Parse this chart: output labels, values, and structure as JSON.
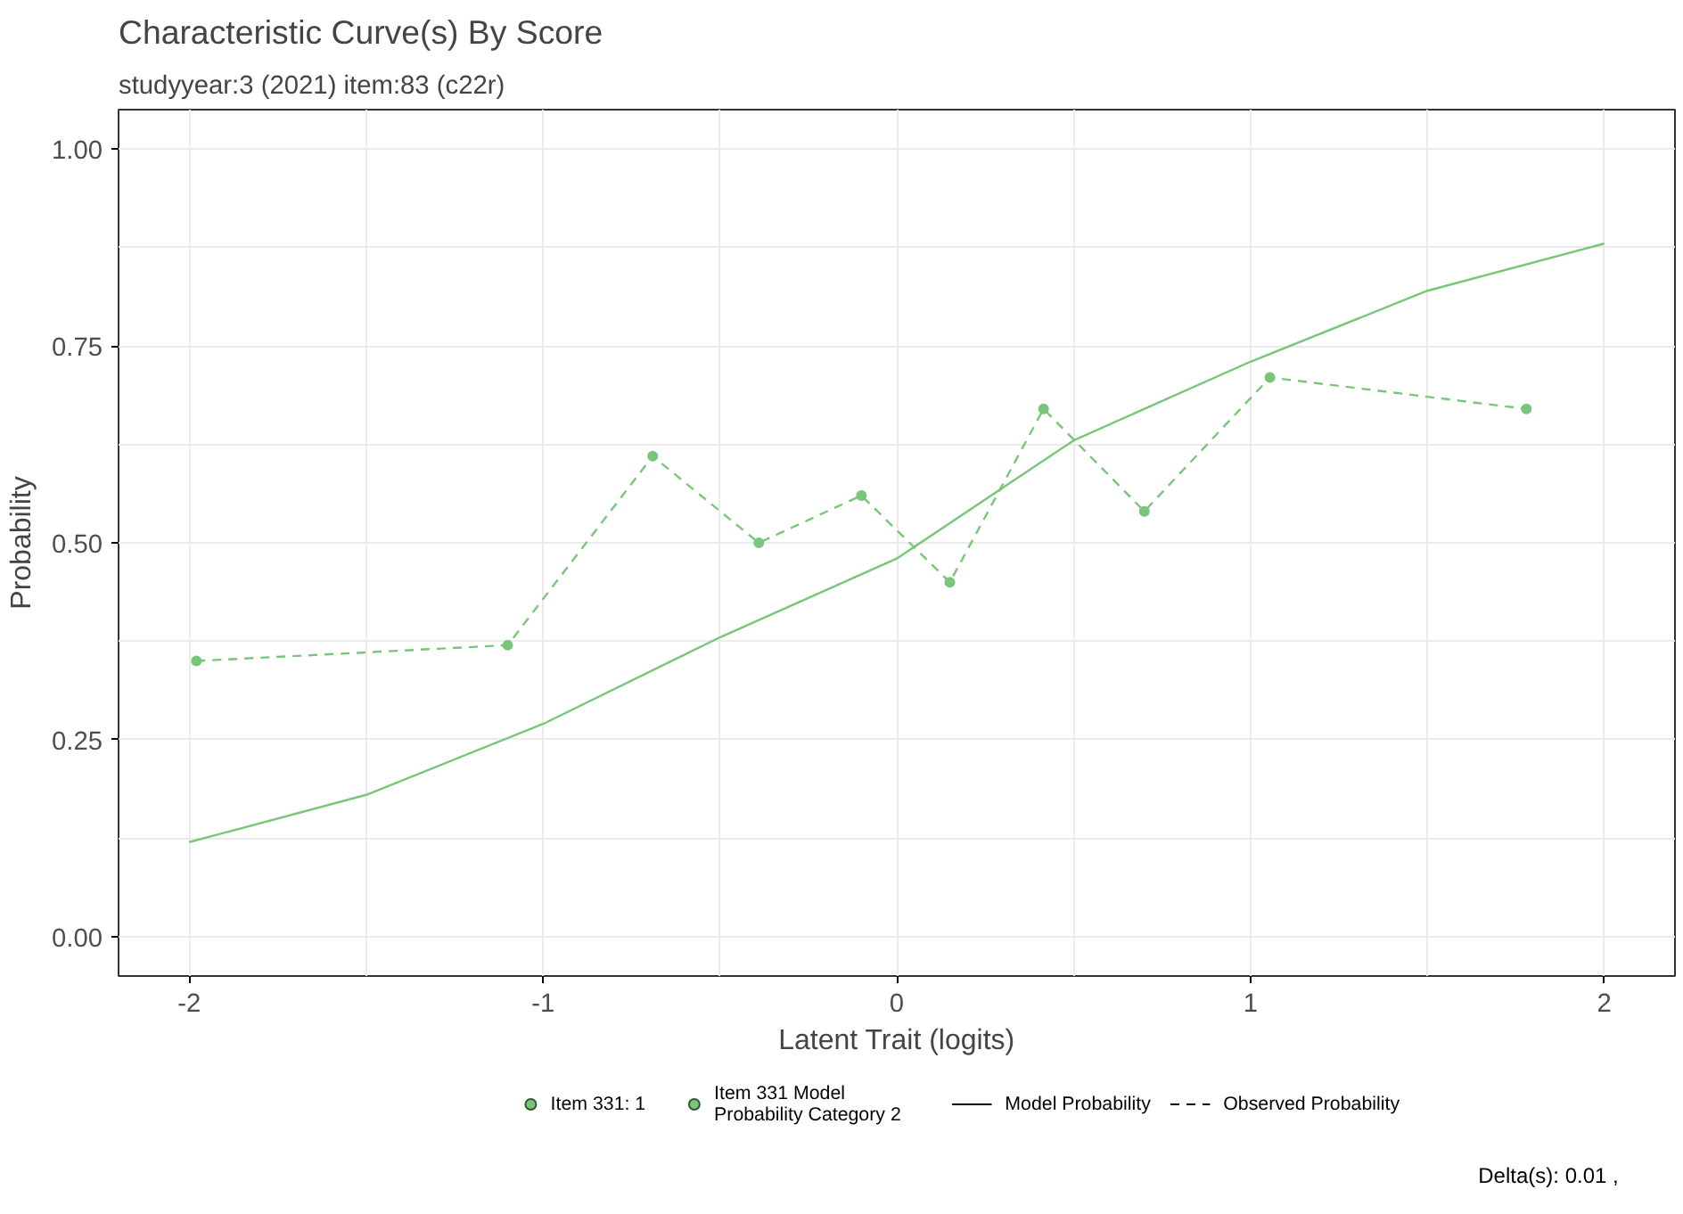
{
  "chart_data": {
    "type": "line",
    "title": "Characteristic Curve(s) By Score",
    "subtitle": "studyyear:3 (2021) item:83 (c22r)",
    "xlabel": "Latent Trait (logits)",
    "ylabel": "Probability",
    "series": [
      {
        "name": "Item 331 Model Probability Category 2",
        "color": "#78c679",
        "line_style": "solid",
        "marker": "none",
        "x": [
          -2,
          -1.5,
          -1,
          -0.5,
          0,
          0.5,
          1,
          1.5,
          2
        ],
        "values": [
          0.12,
          0.18,
          0.27,
          0.38,
          0.48,
          0.63,
          0.73,
          0.82,
          0.88
        ]
      },
      {
        "name": "Item 331: 1",
        "color": "#78c679",
        "line_style": "dashed",
        "marker": "circle",
        "x": [
          -1.98,
          -1.1,
          -0.69,
          -0.39,
          -0.1,
          0.15,
          0.415,
          0.7,
          1.055,
          1.78
        ],
        "values": [
          0.35,
          0.37,
          0.61,
          0.5,
          0.56,
          0.45,
          0.67,
          0.54,
          0.71,
          0.67
        ]
      }
    ],
    "annotations": [
      "Model Probability",
      "Observed Probability",
      "Delta(s):        0.01 ,"
    ],
    "xlim": [
      -2.2,
      2.2
    ],
    "ylim": [
      -0.05,
      1.05
    ],
    "xticks": [
      -2,
      -1,
      0,
      1,
      2
    ],
    "yticks": [
      {
        "value": 0,
        "label": "0.00"
      },
      {
        "value": 0.25,
        "label": "0.25"
      },
      {
        "value": 0.5,
        "label": "0.50"
      },
      {
        "value": 0.75,
        "label": "0.75"
      },
      {
        "value": 1,
        "label": "1.00"
      }
    ],
    "grid": true,
    "legend": "bottom"
  }
}
